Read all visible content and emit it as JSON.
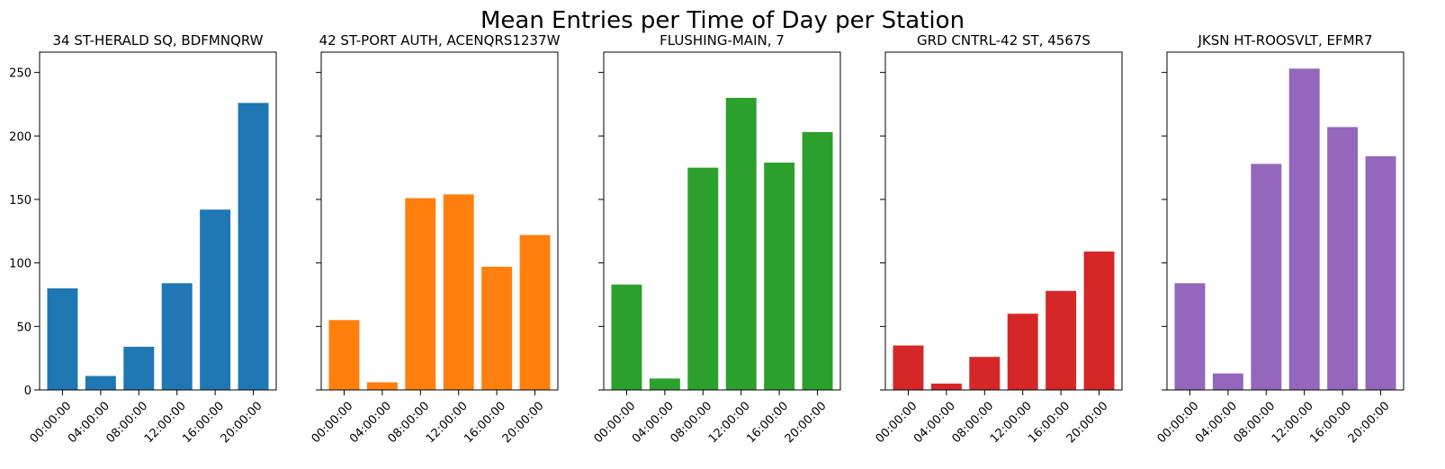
{
  "figure": {
    "title": "Mean Entries per Time of Day per Station"
  },
  "chart_data": [
    {
      "type": "bar",
      "title": "34 ST-HERALD SQ, BDFMNQRW",
      "categories": [
        "00:00:00",
        "04:00:00",
        "08:00:00",
        "12:00:00",
        "16:00:00",
        "20:00:00"
      ],
      "values": [
        80,
        11,
        34,
        84,
        142,
        226
      ],
      "color": "#1f77b4",
      "ylim": [
        0,
        266
      ],
      "yticks": [
        0,
        50,
        100,
        150,
        200,
        250
      ]
    },
    {
      "type": "bar",
      "title": "42 ST-PORT AUTH, ACENQRS1237W",
      "categories": [
        "00:00:00",
        "04:00:00",
        "08:00:00",
        "12:00:00",
        "16:00:00",
        "20:00:00"
      ],
      "values": [
        55,
        6,
        151,
        154,
        97,
        122
      ],
      "color": "#ff7f0e",
      "ylim": [
        0,
        266
      ]
    },
    {
      "type": "bar",
      "title": "FLUSHING-MAIN, 7",
      "categories": [
        "00:00:00",
        "04:00:00",
        "08:00:00",
        "12:00:00",
        "16:00:00",
        "20:00:00"
      ],
      "values": [
        83,
        9,
        175,
        230,
        179,
        203
      ],
      "color": "#2ca02c",
      "ylim": [
        0,
        266
      ]
    },
    {
      "type": "bar",
      "title": "GRD CNTRL-42 ST, 4567S",
      "categories": [
        "00:00:00",
        "04:00:00",
        "08:00:00",
        "12:00:00",
        "16:00:00",
        "20:00:00"
      ],
      "values": [
        35,
        5,
        26,
        60,
        78,
        109
      ],
      "color": "#d62728",
      "ylim": [
        0,
        266
      ]
    },
    {
      "type": "bar",
      "title": "JKSN HT-ROOSVLT, EFMR7",
      "categories": [
        "00:00:00",
        "04:00:00",
        "08:00:00",
        "12:00:00",
        "16:00:00",
        "20:00:00"
      ],
      "values": [
        84,
        13,
        178,
        253,
        207,
        184
      ],
      "color": "#9467bd",
      "ylim": [
        0,
        266
      ]
    }
  ]
}
